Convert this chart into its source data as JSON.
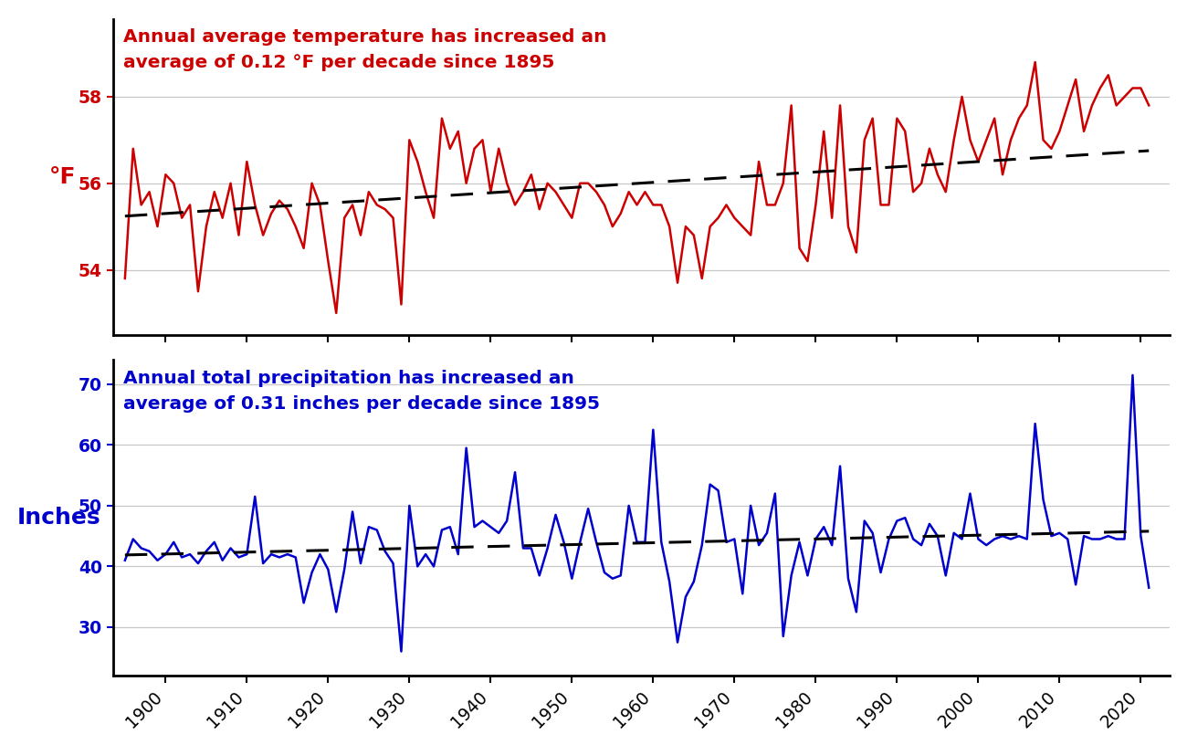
{
  "years": [
    1895,
    1896,
    1897,
    1898,
    1899,
    1900,
    1901,
    1902,
    1903,
    1904,
    1905,
    1906,
    1907,
    1908,
    1909,
    1910,
    1911,
    1912,
    1913,
    1914,
    1915,
    1916,
    1917,
    1918,
    1919,
    1920,
    1921,
    1922,
    1923,
    1924,
    1925,
    1926,
    1927,
    1928,
    1929,
    1930,
    1931,
    1932,
    1933,
    1934,
    1935,
    1936,
    1937,
    1938,
    1939,
    1940,
    1941,
    1942,
    1943,
    1944,
    1945,
    1946,
    1947,
    1948,
    1949,
    1950,
    1951,
    1952,
    1953,
    1954,
    1955,
    1956,
    1957,
    1958,
    1959,
    1960,
    1961,
    1962,
    1963,
    1964,
    1965,
    1966,
    1967,
    1968,
    1969,
    1970,
    1971,
    1972,
    1973,
    1974,
    1975,
    1976,
    1977,
    1978,
    1979,
    1980,
    1981,
    1982,
    1983,
    1984,
    1985,
    1986,
    1987,
    1988,
    1989,
    1990,
    1991,
    1992,
    1993,
    1994,
    1995,
    1996,
    1997,
    1998,
    1999,
    2000,
    2001,
    2002,
    2003,
    2004,
    2005,
    2006,
    2007,
    2008,
    2009,
    2010,
    2011,
    2012,
    2013,
    2014,
    2015,
    2016,
    2017,
    2018,
    2019,
    2020,
    2021
  ],
  "temp": [
    53.8,
    56.8,
    55.5,
    55.8,
    55.0,
    56.2,
    56.0,
    55.2,
    55.5,
    53.5,
    55.0,
    55.8,
    55.2,
    56.0,
    54.8,
    56.5,
    55.5,
    54.8,
    55.3,
    55.6,
    55.4,
    55.0,
    54.5,
    56.0,
    55.5,
    54.2,
    53.0,
    55.2,
    55.5,
    54.8,
    55.8,
    55.5,
    55.4,
    55.2,
    53.2,
    57.0,
    56.5,
    55.8,
    55.2,
    57.5,
    56.8,
    57.2,
    56.0,
    56.8,
    57.0,
    55.8,
    56.8,
    56.0,
    55.5,
    55.8,
    56.2,
    55.4,
    56.0,
    55.8,
    55.5,
    55.2,
    56.0,
    56.0,
    55.8,
    55.5,
    55.0,
    55.3,
    55.8,
    55.5,
    55.8,
    55.5,
    55.5,
    55.0,
    53.7,
    55.0,
    54.8,
    53.8,
    55.0,
    55.2,
    55.5,
    55.2,
    55.0,
    54.8,
    56.5,
    55.5,
    55.5,
    56.0,
    57.8,
    54.5,
    54.2,
    55.5,
    57.2,
    55.2,
    57.8,
    55.0,
    54.4,
    57.0,
    57.5,
    55.5,
    55.5,
    57.5,
    57.2,
    55.8,
    56.0,
    56.8,
    56.2,
    55.8,
    57.0,
    58.0,
    57.0,
    56.5,
    57.0,
    57.5,
    56.2,
    57.0,
    57.5,
    57.8,
    58.8,
    57.0,
    56.8,
    57.2,
    57.8,
    58.4,
    57.2,
    57.8,
    58.2,
    58.5,
    57.8,
    58.0,
    58.2,
    58.2,
    57.8
  ],
  "precip": [
    41.0,
    44.5,
    43.0,
    42.5,
    41.0,
    42.0,
    44.0,
    41.5,
    42.0,
    40.5,
    42.5,
    44.0,
    41.0,
    43.0,
    41.5,
    42.0,
    51.5,
    40.5,
    42.0,
    41.5,
    42.0,
    41.5,
    34.0,
    39.0,
    42.0,
    39.5,
    32.5,
    39.5,
    49.0,
    40.5,
    46.5,
    46.0,
    42.5,
    40.5,
    26.0,
    50.0,
    40.0,
    42.0,
    40.0,
    46.0,
    46.5,
    42.0,
    59.5,
    46.5,
    47.5,
    46.5,
    45.5,
    47.5,
    55.5,
    43.0,
    43.0,
    38.5,
    43.0,
    48.5,
    44.0,
    38.0,
    44.0,
    49.5,
    44.0,
    39.0,
    38.0,
    38.5,
    50.0,
    44.0,
    44.0,
    62.5,
    44.0,
    37.5,
    27.5,
    35.0,
    37.5,
    43.5,
    53.5,
    52.5,
    44.0,
    44.5,
    35.5,
    50.0,
    43.5,
    45.5,
    52.0,
    28.5,
    38.5,
    44.0,
    38.5,
    44.5,
    46.5,
    43.5,
    56.5,
    38.0,
    32.5,
    47.5,
    45.5,
    39.0,
    44.5,
    47.5,
    48.0,
    44.5,
    43.5,
    47.0,
    45.0,
    38.5,
    45.5,
    44.5,
    52.0,
    44.5,
    43.5,
    44.5,
    45.0,
    44.5,
    45.0,
    44.5,
    63.5,
    51.0,
    45.0,
    45.5,
    44.5,
    37.0,
    45.0,
    44.5,
    44.5,
    45.0,
    44.5,
    44.5,
    71.5,
    45.0,
    36.5
  ],
  "temp_color": "#cc0000",
  "precip_color": "#0000cc",
  "trend_color": "#000000",
  "temp_annotation": "Annual average temperature has increased an\naverage of 0.12 °F per decade since 1895",
  "precip_annotation": "Annual total precipitation has increased an\naverage of 0.31 inches per decade since 1895",
  "temp_ylabel": "°F",
  "precip_ylabel": "Inches",
  "temp_ylim": [
    52.5,
    59.8
  ],
  "temp_yticks": [
    54,
    56,
    58
  ],
  "precip_ylim": [
    22.0,
    74.0
  ],
  "precip_yticks": [
    30,
    40,
    50,
    60,
    70
  ],
  "xlim_start": 1893.5,
  "xlim_end": 2023.5,
  "xticks": [
    1900,
    1910,
    1920,
    1930,
    1940,
    1950,
    1960,
    1970,
    1980,
    1990,
    2000,
    2010,
    2020
  ],
  "background_color": "#ffffff",
  "grid_color": "#c8c8c8",
  "annotation_fontsize": 14.5,
  "label_fontsize": 18,
  "tick_fontsize": 13.5,
  "line_width": 1.8
}
